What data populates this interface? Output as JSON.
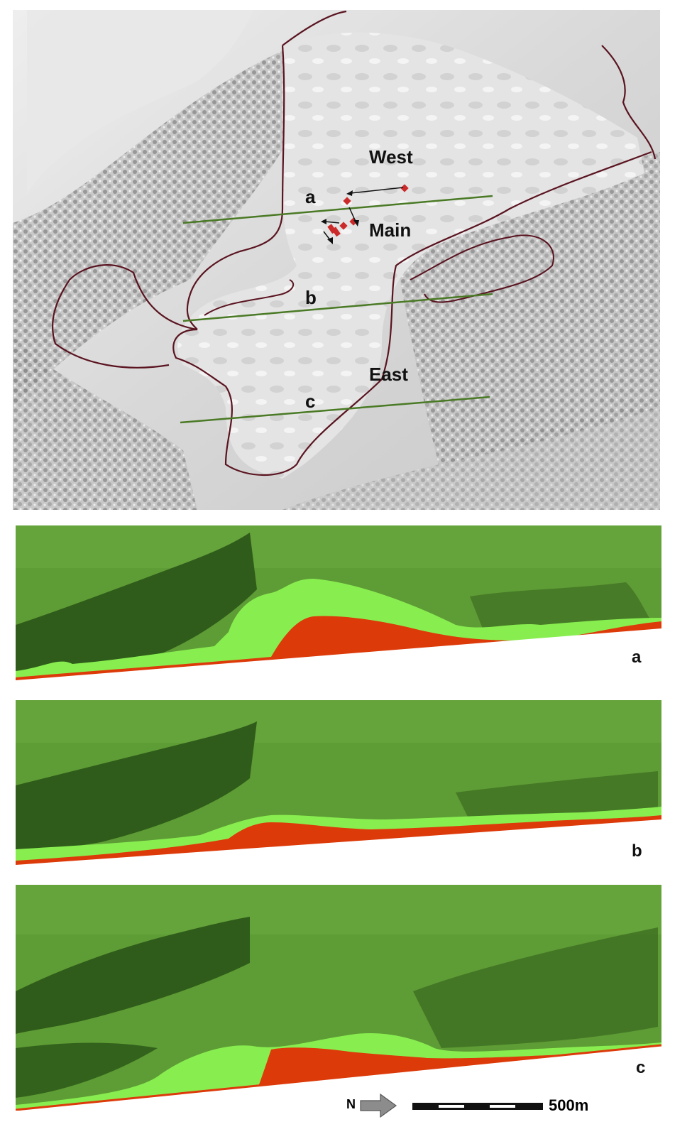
{
  "map": {
    "zone_labels": {
      "west": "West",
      "main": "Main",
      "east": "East"
    },
    "profile_line_labels": {
      "a": "a",
      "b": "b",
      "c": "c"
    },
    "colors": {
      "hillshade_light": "#e6e6e6",
      "hillshade_dark": "#9a9a9a",
      "boundary": "#5a1420",
      "profile_line": "#4a7a25",
      "marker": "#cc2a2a",
      "arrow": "#111111"
    }
  },
  "profiles": [
    {
      "id": "a",
      "label": "a"
    },
    {
      "id": "b",
      "label": "b"
    },
    {
      "id": "c",
      "label": "c"
    }
  ],
  "profile_colors": {
    "terrain": "#5e9c35",
    "vegetation": "#2f5c1a",
    "light_layer": "#88ee50",
    "red_layer": "#dd3a0a",
    "baseline": "#dd3a0a"
  },
  "legend": {
    "north_label": "N",
    "scale_label": "500m",
    "north_arrow_color": "#8c8c8c"
  }
}
